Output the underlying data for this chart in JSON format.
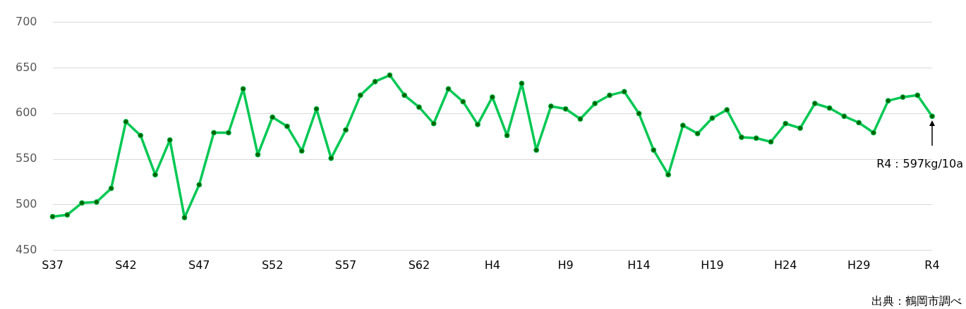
{
  "chart_data": {
    "type": "line",
    "categories": [
      "S37",
      null,
      null,
      null,
      null,
      "S42",
      null,
      null,
      null,
      null,
      "S47",
      null,
      null,
      null,
      null,
      "S52",
      null,
      null,
      null,
      null,
      "S57",
      null,
      null,
      null,
      null,
      "S62",
      null,
      null,
      null,
      null,
      "H4",
      null,
      null,
      null,
      null,
      "H9",
      null,
      null,
      null,
      null,
      "H14",
      null,
      null,
      null,
      null,
      "H19",
      null,
      null,
      null,
      null,
      "H24",
      null,
      null,
      null,
      null,
      "H29",
      null,
      null,
      null,
      null,
      "R4"
    ],
    "series": [
      {
        "color": "#00c853",
        "values": [
          487,
          489,
          502,
          503,
          518,
          591,
          576,
          533,
          571,
          486,
          522,
          579,
          579,
          627,
          555,
          596,
          586,
          559,
          605,
          551,
          582,
          620,
          635,
          642,
          620,
          607,
          589,
          627,
          613,
          588,
          618,
          576,
          633,
          560,
          608,
          605,
          594,
          611,
          620,
          624,
          600,
          560,
          533,
          587,
          578,
          595,
          604,
          574,
          573,
          569,
          589,
          584,
          611,
          606,
          597,
          590,
          579,
          614,
          618,
          620,
          597
        ]
      }
    ],
    "ylim": [
      450,
      700
    ],
    "yticks": [
      450,
      500,
      550,
      600,
      650,
      700
    ],
    "grid": "y",
    "legend": false,
    "marker": "circle",
    "line_style": "solid",
    "annotations": [
      "R4：597kg/10a",
      "出典：鶴岡市調べ"
    ]
  }
}
